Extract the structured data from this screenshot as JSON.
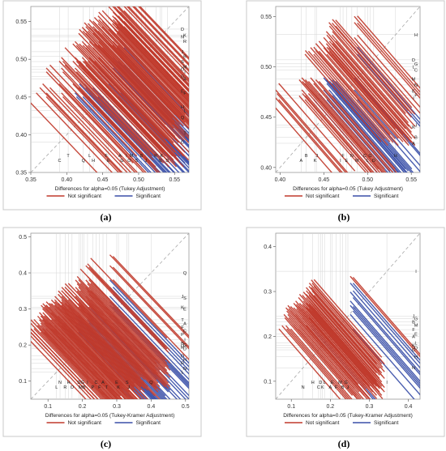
{
  "colors": {
    "not_significant": "#c0392b",
    "significant": "#3a4fa8",
    "guide": "#d4d4d4",
    "diagonal": "#a8a8a8"
  },
  "chart_data": [
    {
      "type": "line",
      "caption_text": "a",
      "xlabel": "Differences for alpha=0.05 (Tukey Adjustment)",
      "xlim": [
        0.35,
        0.57
      ],
      "ylim": [
        0.35,
        0.57
      ],
      "xticks": [
        "0.35",
        "0.40",
        "0.45",
        "0.50",
        "0.55"
      ],
      "xtick_values": [
        0.35,
        0.4,
        0.45,
        0.5,
        0.55
      ],
      "yticks": [
        "0.35",
        "0.40",
        "0.45",
        "0.50",
        "0.55"
      ],
      "ytick_values": [
        0.35,
        0.4,
        0.45,
        0.5,
        0.55
      ],
      "legend": [
        "Not significant",
        "Significant"
      ],
      "treatments": [
        {
          "code": "C",
          "mean": 0.39
        },
        {
          "code": "T",
          "mean": 0.402
        },
        {
          "code": "Q",
          "mean": 0.423
        },
        {
          "code": "L",
          "mean": 0.432
        },
        {
          "code": "H",
          "mean": 0.437
        },
        {
          "code": "F",
          "mean": 0.455
        },
        {
          "code": "E",
          "mean": 0.458
        },
        {
          "code": "A",
          "mean": 0.474
        },
        {
          "code": "G",
          "mean": 0.477
        },
        {
          "code": "I",
          "mean": 0.483
        },
        {
          "code": "O",
          "mean": 0.487
        },
        {
          "code": "M",
          "mean": 0.49
        },
        {
          "code": "S",
          "mean": 0.497
        },
        {
          "code": "B",
          "mean": 0.504
        },
        {
          "code": "J",
          "mean": 0.51
        },
        {
          "code": "R",
          "mean": 0.524
        },
        {
          "code": "N",
          "mean": 0.53
        },
        {
          "code": "K",
          "mean": 0.532
        },
        {
          "code": "D",
          "mean": 0.54
        }
      ]
    },
    {
      "type": "line",
      "caption_text": "b",
      "xlabel": "Differences for alpha=0.05 (Tukey Adjustment)",
      "xlim": [
        0.395,
        0.56
      ],
      "ylim": [
        0.395,
        0.56
      ],
      "xticks": [
        "0.40",
        "0.45",
        "0.50",
        "0.55"
      ],
      "xtick_values": [
        0.4,
        0.45,
        0.5,
        0.55
      ],
      "yticks": [
        "0.40",
        "0.45",
        "0.50",
        "0.55"
      ],
      "ytick_values": [
        0.4,
        0.45,
        0.5,
        0.55
      ],
      "legend": [
        "Not significant",
        "Significant"
      ],
      "treatments": [
        {
          "code": "A",
          "mean": 0.424
        },
        {
          "code": "B",
          "mean": 0.43
        },
        {
          "code": "K",
          "mean": 0.44
        },
        {
          "code": "J",
          "mean": 0.442
        },
        {
          "code": "I",
          "mean": 0.469
        },
        {
          "code": "F",
          "mean": 0.472
        },
        {
          "code": "E",
          "mean": 0.476
        },
        {
          "code": "N",
          "mean": 0.482
        },
        {
          "code": "M",
          "mean": 0.488
        },
        {
          "code": "C",
          "mean": 0.497
        },
        {
          "code": "L",
          "mean": 0.5
        },
        {
          "code": "G",
          "mean": 0.503
        },
        {
          "code": "D",
          "mean": 0.507
        },
        {
          "code": "H",
          "mean": 0.532
        }
      ]
    },
    {
      "type": "line",
      "caption_text": "c",
      "xlabel": "Differences for alpha=0.05 (Tukey-Kramer Adjustment)",
      "xlim": [
        0.05,
        0.51
      ],
      "ylim": [
        0.05,
        0.51
      ],
      "xticks": [
        "0.1",
        "0.2",
        "0.3",
        "0.4",
        "0.5"
      ],
      "xtick_values": [
        0.1,
        0.2,
        0.3,
        0.4,
        0.5
      ],
      "yticks": [
        "0.1",
        "0.2",
        "0.3",
        "0.4",
        "0.5"
      ],
      "ytick_values": [
        0.1,
        0.2,
        0.3,
        0.4,
        0.5
      ],
      "legend": [
        "Not significant",
        "Significant"
      ],
      "treatments": [
        {
          "code": "L",
          "mean": 0.125
        },
        {
          "code": "N",
          "mean": 0.135
        },
        {
          "code": "R",
          "mean": 0.15
        },
        {
          "code": "H",
          "mean": 0.16
        },
        {
          "code": "O",
          "mean": 0.17
        },
        {
          "code": "D",
          "mean": 0.19
        },
        {
          "code": "M",
          "mean": 0.195
        },
        {
          "code": "G",
          "mean": 0.2
        },
        {
          "code": "B",
          "mean": 0.205
        },
        {
          "code": "I",
          "mean": 0.215
        },
        {
          "code": "P",
          "mean": 0.23
        },
        {
          "code": "C",
          "mean": 0.24
        },
        {
          "code": "F",
          "mean": 0.25
        },
        {
          "code": "A",
          "mean": 0.26
        },
        {
          "code": "T",
          "mean": 0.27
        },
        {
          "code": "E",
          "mean": 0.3
        },
        {
          "code": "K",
          "mean": 0.305
        },
        {
          "code": "S",
          "mean": 0.33
        },
        {
          "code": "J",
          "mean": 0.335
        },
        {
          "code": "Q",
          "mean": 0.4
        }
      ]
    },
    {
      "type": "line",
      "caption_text": "d",
      "xlabel": "Differences for alpha=0.05 (Tukey-Kramer Adjustment)",
      "xlim": [
        0.06,
        0.43
      ],
      "ylim": [
        0.06,
        0.43
      ],
      "xticks": [
        "0.1",
        "0.2",
        "0.3",
        "0.4"
      ],
      "xtick_values": [
        0.1,
        0.2,
        0.3,
        0.4
      ],
      "yticks": [
        "0.1",
        "0.2",
        "0.3",
        "0.4"
      ],
      "ytick_values": [
        0.1,
        0.2,
        0.3,
        0.4
      ],
      "legend": [
        "Not significant",
        "Significant"
      ],
      "treatments": [
        {
          "code": "N",
          "mean": 0.13
        },
        {
          "code": "H",
          "mean": 0.155
        },
        {
          "code": "C",
          "mean": 0.17
        },
        {
          "code": "D",
          "mean": 0.175
        },
        {
          "code": "K",
          "mean": 0.18
        },
        {
          "code": "L",
          "mean": 0.185
        },
        {
          "code": "A",
          "mean": 0.2
        },
        {
          "code": "E",
          "mean": 0.205
        },
        {
          "code": "F",
          "mean": 0.215
        },
        {
          "code": "M",
          "mean": 0.225
        },
        {
          "code": "B",
          "mean": 0.232
        },
        {
          "code": "G",
          "mean": 0.24
        },
        {
          "code": "J",
          "mean": 0.245
        },
        {
          "code": "I",
          "mean": 0.345
        }
      ]
    }
  ]
}
